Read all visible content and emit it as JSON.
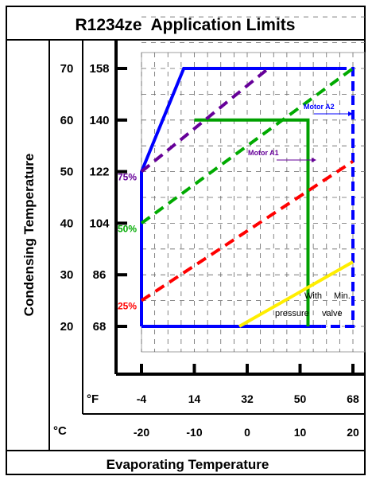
{
  "chart_data": {
    "type": "line",
    "title": "R1234ze  Application Limits",
    "xlabel": "Evaporating Temperature",
    "ylabel": "Condensing Temperature",
    "x_unit_f": "°F",
    "x_unit_c": "°C",
    "x_ticks_f": [
      "-4",
      "14",
      "32",
      "50",
      "68"
    ],
    "x_ticks_c": [
      "-20",
      "-10",
      "0",
      "10",
      "20"
    ],
    "y_ticks_c": [
      "70",
      "60",
      "50",
      "40",
      "30",
      "20"
    ],
    "y_ticks_f": [
      "158",
      "140",
      "122",
      "104",
      "86",
      "68"
    ],
    "xlim_c": [
      -20,
      20
    ],
    "ylim_c": [
      20,
      70
    ],
    "grid": true,
    "colors": {
      "frame": "#000000",
      "envelope": "#0000ff",
      "motor_a1": "#00a000",
      "pct75": "#660099",
      "pct50": "#00aa00",
      "pct25": "#ff0000",
      "min_valve": "#ffee00"
    },
    "envelope": {
      "solid": [
        [
          -20,
          20
        ],
        [
          -20,
          50
        ],
        [
          -12,
          70
        ],
        [
          17,
          70
        ]
      ],
      "solid_bottom": [
        [
          -20,
          20
        ],
        [
          14,
          20
        ]
      ],
      "dashed": [
        [
          17,
          70
        ],
        [
          20,
          70
        ],
        [
          20,
          20
        ],
        [
          14,
          20
        ]
      ]
    },
    "series": [
      {
        "x": [
          -10,
          11.5,
          11.5
        ],
        "y": [
          60,
          60,
          20
        ],
        "style": "solid",
        "color_key": "motor_a1"
      },
      {
        "x": [
          -20,
          4
        ],
        "y": [
          50,
          70
        ],
        "style": "dashed",
        "color_key": "pct75"
      },
      {
        "x": [
          -20,
          20
        ],
        "y": [
          40,
          70
        ],
        "style": "dashed",
        "color_key": "pct50"
      },
      {
        "x": [
          -20,
          20
        ],
        "y": [
          25,
          52
        ],
        "style": "dashed",
        "color_key": "pct25"
      },
      {
        "x": [
          -1.5,
          20
        ],
        "y": [
          20,
          32.5
        ],
        "style": "solid",
        "color_key": "min_valve"
      }
    ],
    "annotations": {
      "pct75": "75%",
      "pct50": "50%",
      "pct25": "25%",
      "motor_a1": "Motor A1",
      "motor_a2": "Motor A2",
      "with": "With",
      "min": "Min.",
      "pressure": "pressure",
      "valve": "valve"
    }
  }
}
